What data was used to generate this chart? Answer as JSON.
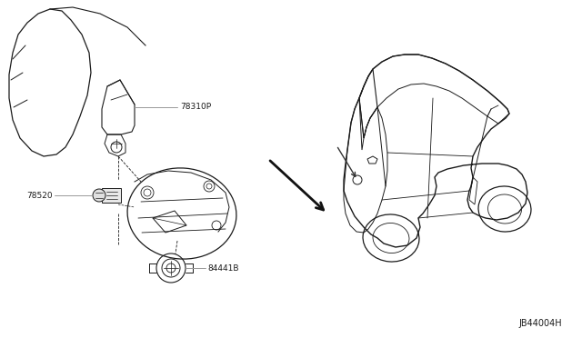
{
  "bg_color": "#ffffff",
  "line_color": "#1a1a1a",
  "gray_line_color": "#999999",
  "diagram_id": "JB44004H",
  "figsize": [
    6.4,
    3.72
  ],
  "dpi": 100,
  "label_78310P": "78310P",
  "label_78520": "78520",
  "label_84441B": "84441B"
}
